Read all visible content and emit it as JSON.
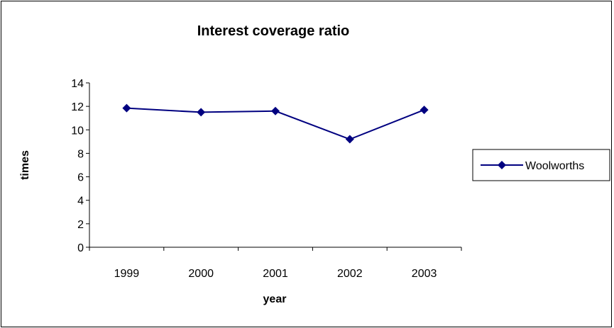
{
  "chart_data": {
    "type": "line",
    "title": "Interest coverage ratio",
    "xlabel": "year",
    "ylabel": "times",
    "categories": [
      "1999",
      "2000",
      "2001",
      "2002",
      "2003"
    ],
    "series": [
      {
        "name": "Woolworths",
        "values": [
          11.85,
          11.5,
          11.6,
          9.2,
          11.7
        ],
        "color": "#000080",
        "marker": "diamond"
      }
    ],
    "ylim": [
      0,
      14
    ],
    "yticks": [
      0,
      2,
      4,
      6,
      8,
      10,
      12,
      14
    ],
    "grid": false,
    "legend": "right"
  }
}
